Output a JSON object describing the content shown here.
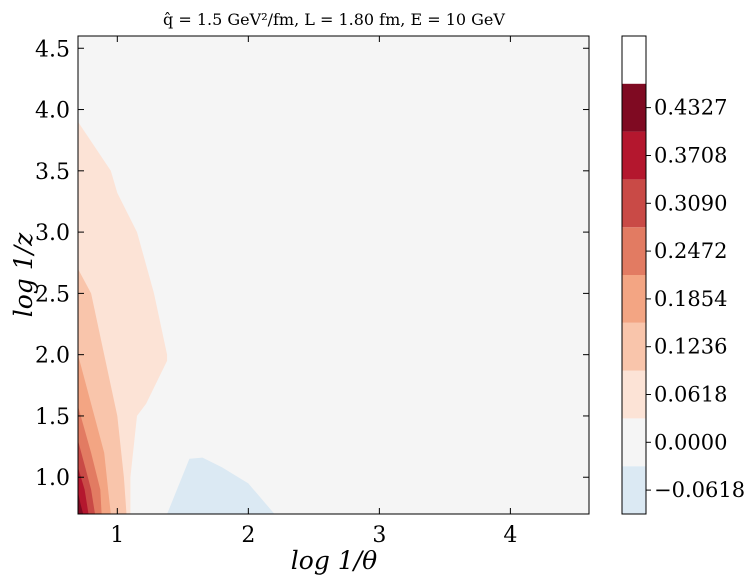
{
  "chart_data": {
    "type": "heatmap",
    "title": "q̂ = 1.5 GeV²/fm, L = 1.80 fm, E = 10 GeV",
    "xlabel": "log 1/θ",
    "ylabel": "log 1/z",
    "xlim": [
      0.7,
      4.6
    ],
    "ylim": [
      0.7,
      4.6
    ],
    "x_ticks": [
      1,
      2,
      3,
      4
    ],
    "x_tick_labels": [
      "1",
      "2",
      "3",
      "4"
    ],
    "y_ticks": [
      1.0,
      1.5,
      2.0,
      2.5,
      3.0,
      3.5,
      4.0,
      4.5
    ],
    "y_tick_labels": [
      "1.0",
      "1.5",
      "2.0",
      "2.5",
      "3.0",
      "3.5",
      "4.0",
      "4.5"
    ],
    "colorbar": {
      "levels": [
        -0.0927,
        -0.0309,
        0.0309,
        0.0927,
        0.1545,
        0.2163,
        0.2781,
        0.3399,
        0.4017,
        0.4635,
        0.5253
      ],
      "tick_values": [
        -0.0618,
        0.0,
        0.0618,
        0.1236,
        0.1854,
        0.2472,
        0.309,
        0.3708,
        0.4327
      ],
      "tick_labels": [
        "−0.0618",
        "0.0000",
        "0.0618",
        "0.1236",
        "0.1854",
        "0.2472",
        "0.3090",
        "0.3708",
        "0.4327"
      ],
      "colors": [
        "#dbe9f3",
        "#f5f5f5",
        "#fce3d6",
        "#f9c5ab",
        "#f3a583",
        "#e27b62",
        "#c94a46",
        "#b4172e",
        "#7f0a22"
      ]
    },
    "regions": [
      {
        "level": 0.0618,
        "color": "#fce3d6",
        "boundary": [
          [
            0.7,
            3.9
          ],
          [
            0.95,
            3.5
          ],
          [
            1.0,
            3.32
          ],
          [
            1.15,
            3.0
          ],
          [
            1.28,
            2.5
          ],
          [
            1.38,
            2.0
          ],
          [
            1.38,
            1.95
          ],
          [
            1.22,
            1.6
          ],
          [
            1.15,
            1.5
          ],
          [
            1.1,
            1.0
          ],
          [
            1.1,
            0.7
          ],
          [
            0.7,
            0.7
          ]
        ]
      },
      {
        "level": 0.1236,
        "color": "#f9c5ab",
        "boundary": [
          [
            0.7,
            2.7
          ],
          [
            0.8,
            2.5
          ],
          [
            0.9,
            2.0
          ],
          [
            1.0,
            1.5
          ],
          [
            1.05,
            1.0
          ],
          [
            1.07,
            0.7
          ],
          [
            0.7,
            0.7
          ]
        ]
      },
      {
        "level": 0.1854,
        "color": "#f3a583",
        "boundary": [
          [
            0.7,
            2.0
          ],
          [
            0.8,
            1.6
          ],
          [
            0.9,
            1.2
          ],
          [
            0.93,
            0.9
          ],
          [
            0.95,
            0.7
          ],
          [
            0.7,
            0.7
          ]
        ]
      },
      {
        "level": 0.2472,
        "color": "#e27b62",
        "boundary": [
          [
            0.7,
            1.58
          ],
          [
            0.8,
            1.2
          ],
          [
            0.87,
            0.9
          ],
          [
            0.88,
            0.7
          ],
          [
            0.7,
            0.7
          ]
        ]
      },
      {
        "level": 0.309,
        "color": "#c94a46",
        "boundary": [
          [
            0.7,
            1.3
          ],
          [
            0.75,
            1.1
          ],
          [
            0.8,
            0.9
          ],
          [
            0.83,
            0.7
          ],
          [
            0.7,
            0.7
          ]
        ]
      },
      {
        "level": 0.3708,
        "color": "#b4172e",
        "boundary": [
          [
            0.7,
            1.08
          ],
          [
            0.75,
            0.9
          ],
          [
            0.78,
            0.7
          ],
          [
            0.7,
            0.7
          ]
        ]
      },
      {
        "level": 0.4327,
        "color": "#7f0a22",
        "boundary": [
          [
            0.7,
            0.88
          ],
          [
            0.72,
            0.78
          ],
          [
            0.74,
            0.7
          ],
          [
            0.7,
            0.7
          ]
        ]
      },
      {
        "level": -0.0618,
        "color": "#dbe9f3",
        "boundary": [
          [
            1.38,
            0.7
          ],
          [
            1.55,
            1.15
          ],
          [
            1.65,
            1.16
          ],
          [
            1.8,
            1.08
          ],
          [
            2.0,
            0.95
          ],
          [
            2.2,
            0.7
          ]
        ]
      }
    ]
  }
}
